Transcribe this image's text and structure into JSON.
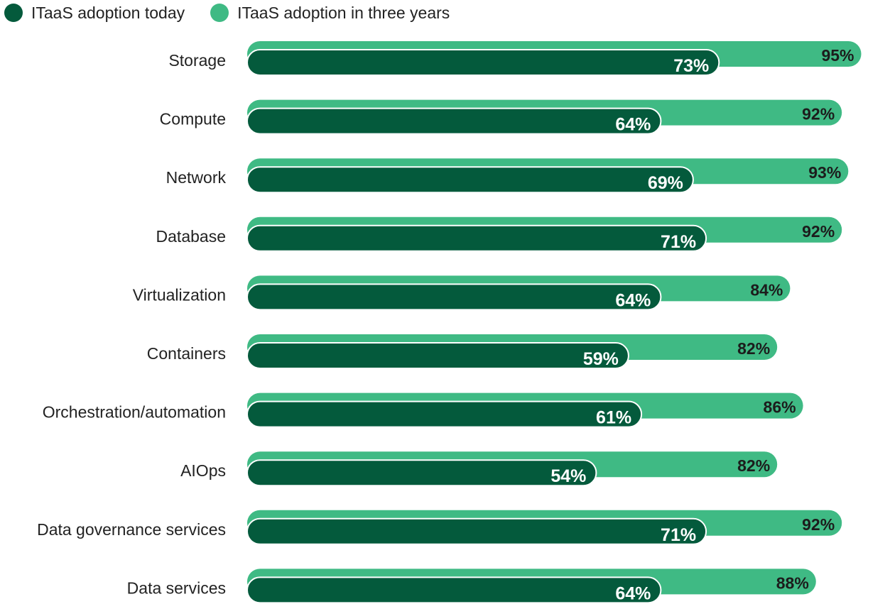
{
  "chart_data": {
    "type": "bar",
    "orientation": "horizontal",
    "categories": [
      "Storage",
      "Compute",
      "Network",
      "Database",
      "Virtualization",
      "Containers",
      "Orchestration/automation",
      "AIOps",
      "Data governance services",
      "Data services"
    ],
    "series": [
      {
        "name": "ITaaS adoption today",
        "color": "#045a3c",
        "values": [
          73,
          64,
          69,
          71,
          64,
          59,
          61,
          54,
          71,
          64
        ],
        "labels": [
          "73%",
          "64%",
          "69%",
          "71%",
          "64%",
          "59%",
          "61%",
          "54%",
          "71%",
          "64%"
        ]
      },
      {
        "name": "ITaaS adoption in three years",
        "color": "#3fba84",
        "values": [
          95,
          92,
          93,
          92,
          84,
          82,
          86,
          82,
          92,
          88
        ],
        "labels": [
          "95%",
          "92%",
          "93%",
          "92%",
          "84%",
          "82%",
          "86%",
          "82%",
          "92%",
          "88%"
        ]
      }
    ],
    "xlim": [
      0,
      100
    ],
    "legend_position": "top-left",
    "grid": false
  }
}
